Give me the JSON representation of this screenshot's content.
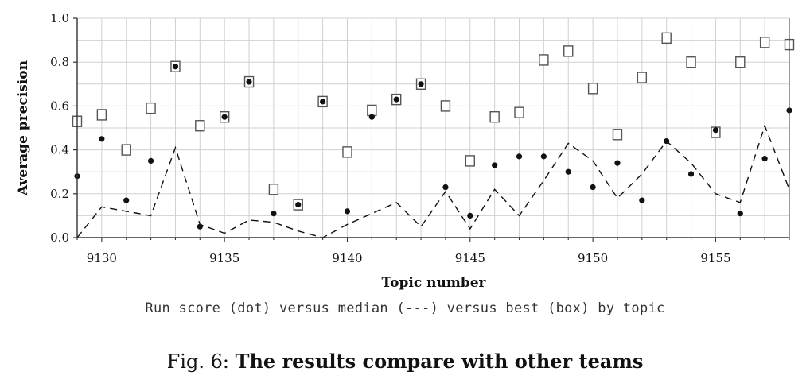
{
  "chart_data": {
    "type": "scatter",
    "xlabel": "Topic number",
    "ylabel": "Average precision",
    "xlim": [
      9129,
      9158
    ],
    "ylim": [
      0,
      1.0
    ],
    "x_ticks": [
      9130,
      9135,
      9140,
      9145,
      9150,
      9155
    ],
    "y_ticks": [
      "0.0",
      "0.2",
      "0.4",
      "0.6",
      "0.8",
      "1.0"
    ],
    "y_tick_values": [
      0,
      0.2,
      0.4,
      0.6,
      0.8,
      1.0
    ],
    "grid": true,
    "x": [
      9129,
      9130,
      9131,
      9132,
      9133,
      9134,
      9135,
      9136,
      9137,
      9138,
      9139,
      9140,
      9141,
      9142,
      9143,
      9144,
      9145,
      9146,
      9147,
      9148,
      9149,
      9150,
      9151,
      9152,
      9153,
      9154,
      9155,
      9156,
      9157,
      9158
    ],
    "series": [
      {
        "style": "dot",
        "values": [
          0.28,
          0.45,
          0.17,
          0.35,
          0.78,
          0.05,
          0.55,
          0.71,
          0.11,
          0.15,
          0.62,
          0.12,
          0.55,
          0.63,
          0.7,
          0.23,
          0.1,
          0.33,
          0.37,
          0.37,
          0.3,
          0.23,
          0.34,
          0.17,
          0.44,
          0.29,
          0.49,
          0.11,
          0.36,
          0.58
        ]
      },
      {
        "style": "dashed",
        "values": [
          0.0,
          0.14,
          0.12,
          0.1,
          0.41,
          0.06,
          0.02,
          0.08,
          0.07,
          0.03,
          0.0,
          0.06,
          0.11,
          0.16,
          0.05,
          0.21,
          0.04,
          0.22,
          0.1,
          0.26,
          0.43,
          0.35,
          0.18,
          0.29,
          0.44,
          0.34,
          0.2,
          0.16,
          0.51,
          0.22
        ]
      },
      {
        "style": "box",
        "values": [
          0.53,
          0.56,
          0.4,
          0.59,
          0.78,
          0.51,
          0.55,
          0.71,
          0.22,
          0.15,
          0.62,
          0.39,
          0.58,
          0.63,
          0.7,
          0.6,
          0.35,
          0.55,
          0.57,
          0.81,
          0.85,
          0.68,
          0.47,
          0.73,
          0.91,
          0.8,
          0.48,
          0.8,
          0.89,
          0.88
        ]
      }
    ],
    "subtitle": "Run score (dot) versus median (---) versus best (box) by topic",
    "colors": {
      "axis": "#333333",
      "grid": "#d0d0d0",
      "marks": "#111111",
      "box_border": "#555555"
    }
  },
  "caption": {
    "prefix": "Fig. 6:",
    "title": "The results compare with other teams"
  }
}
